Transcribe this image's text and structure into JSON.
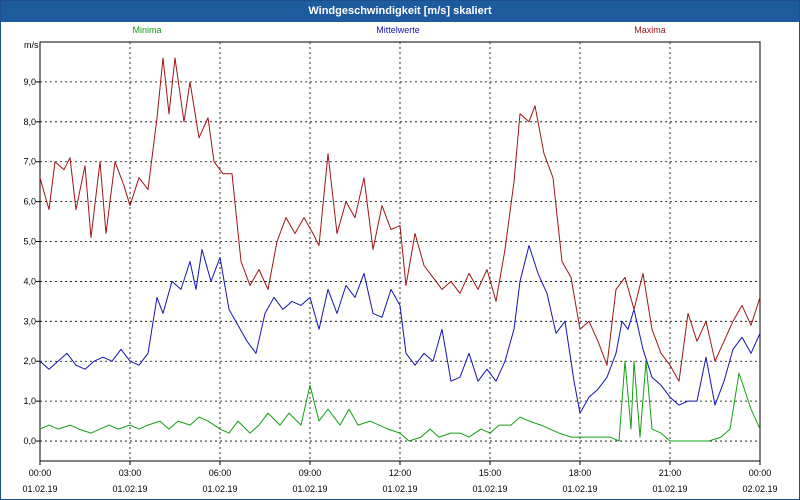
{
  "window": {
    "title": "Windgeschwindigkeit [m/s] skaliert"
  },
  "colors": {
    "minima": "#12a012",
    "mittelwerte": "#1414b4",
    "maxima": "#a01414",
    "grid": "#000000",
    "title_bg": "#1e5a9e"
  },
  "chart_data": {
    "type": "line",
    "title": "Windgeschwindigkeit [m/s] skaliert",
    "ylabel": "m/s",
    "xlabel": "",
    "ylim": [
      -0.5,
      10
    ],
    "y_ticks": [
      "0,0",
      "1,0",
      "2,0",
      "3,0",
      "4,0",
      "5,0",
      "6,0",
      "7,0",
      "8,0",
      "9,0"
    ],
    "y_tick_values": [
      0,
      1,
      2,
      3,
      4,
      5,
      6,
      7,
      8,
      9
    ],
    "x_range_hours": [
      0,
      24
    ],
    "x_ticks": [
      {
        "time": "00:00",
        "date": "01.02.19"
      },
      {
        "time": "03:00",
        "date": "01.02.19"
      },
      {
        "time": "06:00",
        "date": "01.02.19"
      },
      {
        "time": "09:00",
        "date": "01.02.19"
      },
      {
        "time": "12:00",
        "date": "01.02.19"
      },
      {
        "time": "15:00",
        "date": "01.02.19"
      },
      {
        "time": "18:00",
        "date": "01.02.19"
      },
      {
        "time": "21:00",
        "date": "01.02.19"
      },
      {
        "time": "00:00",
        "date": "02.02.19"
      }
    ],
    "grid": true,
    "legend_position": "top",
    "series": [
      {
        "name": "Minima",
        "color": "#12a012",
        "points": [
          [
            0,
            0.3
          ],
          [
            0.3,
            0.4
          ],
          [
            0.6,
            0.3
          ],
          [
            1.0,
            0.4
          ],
          [
            1.3,
            0.3
          ],
          [
            1.7,
            0.2
          ],
          [
            2.0,
            0.3
          ],
          [
            2.3,
            0.4
          ],
          [
            2.6,
            0.3
          ],
          [
            3.0,
            0.4
          ],
          [
            3.3,
            0.3
          ],
          [
            3.6,
            0.4
          ],
          [
            4.0,
            0.5
          ],
          [
            4.3,
            0.3
          ],
          [
            4.6,
            0.5
          ],
          [
            5.0,
            0.4
          ],
          [
            5.3,
            0.6
          ],
          [
            5.6,
            0.5
          ],
          [
            6.0,
            0.3
          ],
          [
            6.3,
            0.2
          ],
          [
            6.6,
            0.5
          ],
          [
            7.0,
            0.2
          ],
          [
            7.3,
            0.4
          ],
          [
            7.6,
            0.7
          ],
          [
            8.0,
            0.4
          ],
          [
            8.3,
            0.7
          ],
          [
            8.7,
            0.4
          ],
          [
            9.0,
            1.4
          ],
          [
            9.3,
            0.5
          ],
          [
            9.6,
            0.8
          ],
          [
            10.0,
            0.4
          ],
          [
            10.3,
            0.8
          ],
          [
            10.6,
            0.4
          ],
          [
            11.0,
            0.5
          ],
          [
            11.3,
            0.4
          ],
          [
            11.6,
            0.3
          ],
          [
            12.0,
            0.2
          ],
          [
            12.3,
            0.0
          ],
          [
            12.7,
            0.1
          ],
          [
            13.0,
            0.3
          ],
          [
            13.3,
            0.1
          ],
          [
            13.7,
            0.2
          ],
          [
            14.0,
            0.2
          ],
          [
            14.3,
            0.1
          ],
          [
            14.7,
            0.3
          ],
          [
            15.0,
            0.2
          ],
          [
            15.3,
            0.4
          ],
          [
            15.7,
            0.4
          ],
          [
            16.0,
            0.6
          ],
          [
            16.3,
            0.5
          ],
          [
            16.7,
            0.4
          ],
          [
            17.0,
            0.3
          ],
          [
            17.3,
            0.2
          ],
          [
            17.7,
            0.1
          ],
          [
            18.0,
            0.1
          ],
          [
            18.3,
            0.1
          ],
          [
            18.7,
            0.1
          ],
          [
            19.0,
            0.1
          ],
          [
            19.3,
            0.0
          ],
          [
            19.5,
            2.0
          ],
          [
            19.7,
            0.3
          ],
          [
            19.8,
            2.0
          ],
          [
            20.0,
            0.1
          ],
          [
            20.2,
            2.0
          ],
          [
            20.4,
            0.3
          ],
          [
            20.7,
            0.2
          ],
          [
            21.0,
            0.0
          ],
          [
            21.3,
            0.0
          ],
          [
            21.7,
            0.0
          ],
          [
            22.0,
            0.0
          ],
          [
            22.3,
            0.0
          ],
          [
            22.7,
            0.1
          ],
          [
            23.0,
            0.3
          ],
          [
            23.3,
            1.7
          ],
          [
            23.7,
            0.8
          ],
          [
            24.0,
            0.3
          ]
        ]
      },
      {
        "name": "Mittelwerte",
        "color": "#1414b4",
        "points": [
          [
            0,
            2.0
          ],
          [
            0.3,
            1.8
          ],
          [
            0.6,
            2.0
          ],
          [
            0.9,
            2.2
          ],
          [
            1.2,
            1.9
          ],
          [
            1.5,
            1.8
          ],
          [
            1.8,
            2.0
          ],
          [
            2.1,
            2.1
          ],
          [
            2.4,
            2.0
          ],
          [
            2.7,
            2.3
          ],
          [
            3.0,
            2.0
          ],
          [
            3.3,
            1.9
          ],
          [
            3.6,
            2.2
          ],
          [
            3.9,
            3.6
          ],
          [
            4.1,
            3.2
          ],
          [
            4.4,
            4.0
          ],
          [
            4.7,
            3.8
          ],
          [
            5.0,
            4.5
          ],
          [
            5.2,
            3.8
          ],
          [
            5.4,
            4.8
          ],
          [
            5.7,
            4.0
          ],
          [
            6.0,
            4.6
          ],
          [
            6.3,
            3.3
          ],
          [
            6.6,
            2.9
          ],
          [
            6.9,
            2.5
          ],
          [
            7.2,
            2.2
          ],
          [
            7.5,
            3.2
          ],
          [
            7.8,
            3.6
          ],
          [
            8.1,
            3.3
          ],
          [
            8.4,
            3.5
          ],
          [
            8.7,
            3.4
          ],
          [
            9.0,
            3.6
          ],
          [
            9.3,
            2.8
          ],
          [
            9.6,
            3.8
          ],
          [
            9.9,
            3.2
          ],
          [
            10.2,
            3.9
          ],
          [
            10.5,
            3.6
          ],
          [
            10.8,
            4.2
          ],
          [
            11.1,
            3.2
          ],
          [
            11.4,
            3.1
          ],
          [
            11.7,
            3.8
          ],
          [
            12.0,
            3.4
          ],
          [
            12.2,
            2.2
          ],
          [
            12.5,
            1.9
          ],
          [
            12.8,
            2.2
          ],
          [
            13.1,
            2.0
          ],
          [
            13.4,
            2.8
          ],
          [
            13.7,
            1.5
          ],
          [
            14.0,
            1.6
          ],
          [
            14.3,
            2.2
          ],
          [
            14.6,
            1.5
          ],
          [
            14.9,
            1.8
          ],
          [
            15.2,
            1.5
          ],
          [
            15.5,
            2.0
          ],
          [
            15.8,
            2.8
          ],
          [
            16.0,
            4.0
          ],
          [
            16.3,
            4.9
          ],
          [
            16.6,
            4.2
          ],
          [
            16.9,
            3.7
          ],
          [
            17.2,
            2.7
          ],
          [
            17.5,
            3.0
          ],
          [
            17.8,
            1.5
          ],
          [
            18.0,
            0.7
          ],
          [
            18.3,
            1.1
          ],
          [
            18.6,
            1.3
          ],
          [
            18.9,
            1.6
          ],
          [
            19.2,
            2.2
          ],
          [
            19.4,
            3.0
          ],
          [
            19.6,
            2.8
          ],
          [
            19.8,
            3.3
          ],
          [
            20.1,
            2.3
          ],
          [
            20.4,
            1.6
          ],
          [
            20.7,
            1.4
          ],
          [
            21.0,
            1.1
          ],
          [
            21.3,
            0.9
          ],
          [
            21.6,
            1.0
          ],
          [
            21.9,
            1.0
          ],
          [
            22.2,
            2.1
          ],
          [
            22.5,
            0.9
          ],
          [
            22.8,
            1.5
          ],
          [
            23.1,
            2.3
          ],
          [
            23.4,
            2.6
          ],
          [
            23.7,
            2.2
          ],
          [
            24.0,
            2.7
          ]
        ]
      },
      {
        "name": "Maxima",
        "color": "#a01414",
        "points": [
          [
            0,
            6.6
          ],
          [
            0.3,
            5.8
          ],
          [
            0.5,
            7.0
          ],
          [
            0.8,
            6.8
          ],
          [
            1.0,
            7.1
          ],
          [
            1.2,
            5.8
          ],
          [
            1.5,
            6.9
          ],
          [
            1.7,
            5.1
          ],
          [
            2.0,
            7.0
          ],
          [
            2.2,
            5.2
          ],
          [
            2.5,
            7.0
          ],
          [
            2.8,
            6.4
          ],
          [
            3.0,
            5.9
          ],
          [
            3.3,
            6.6
          ],
          [
            3.6,
            6.3
          ],
          [
            3.9,
            8.1
          ],
          [
            4.1,
            9.6
          ],
          [
            4.3,
            8.2
          ],
          [
            4.5,
            9.6
          ],
          [
            4.8,
            8.0
          ],
          [
            5.0,
            9.0
          ],
          [
            5.3,
            7.6
          ],
          [
            5.6,
            8.1
          ],
          [
            5.8,
            7.0
          ],
          [
            6.1,
            6.7
          ],
          [
            6.4,
            6.7
          ],
          [
            6.7,
            4.5
          ],
          [
            7.0,
            3.9
          ],
          [
            7.3,
            4.3
          ],
          [
            7.6,
            3.8
          ],
          [
            7.9,
            5.0
          ],
          [
            8.2,
            5.6
          ],
          [
            8.5,
            5.2
          ],
          [
            8.8,
            5.6
          ],
          [
            9.1,
            5.2
          ],
          [
            9.3,
            4.9
          ],
          [
            9.6,
            7.2
          ],
          [
            9.9,
            5.2
          ],
          [
            10.2,
            6.0
          ],
          [
            10.5,
            5.6
          ],
          [
            10.8,
            6.6
          ],
          [
            11.1,
            4.8
          ],
          [
            11.4,
            5.9
          ],
          [
            11.7,
            5.3
          ],
          [
            12.0,
            5.4
          ],
          [
            12.2,
            3.9
          ],
          [
            12.5,
            5.2
          ],
          [
            12.8,
            4.4
          ],
          [
            13.1,
            4.1
          ],
          [
            13.4,
            3.8
          ],
          [
            13.7,
            4.0
          ],
          [
            14.0,
            3.7
          ],
          [
            14.3,
            4.2
          ],
          [
            14.6,
            3.8
          ],
          [
            14.9,
            4.3
          ],
          [
            15.2,
            3.5
          ],
          [
            15.5,
            4.8
          ],
          [
            15.8,
            6.5
          ],
          [
            16.0,
            8.2
          ],
          [
            16.3,
            8.0
          ],
          [
            16.5,
            8.4
          ],
          [
            16.8,
            7.2
          ],
          [
            17.1,
            6.6
          ],
          [
            17.4,
            4.5
          ],
          [
            17.7,
            4.1
          ],
          [
            18.0,
            2.8
          ],
          [
            18.3,
            3.0
          ],
          [
            18.6,
            2.5
          ],
          [
            18.9,
            1.9
          ],
          [
            19.2,
            3.8
          ],
          [
            19.5,
            4.1
          ],
          [
            19.8,
            3.3
          ],
          [
            20.1,
            4.2
          ],
          [
            20.4,
            2.8
          ],
          [
            20.7,
            2.2
          ],
          [
            21.0,
            1.9
          ],
          [
            21.3,
            1.5
          ],
          [
            21.6,
            3.2
          ],
          [
            21.9,
            2.5
          ],
          [
            22.2,
            3.0
          ],
          [
            22.5,
            2.0
          ],
          [
            22.8,
            2.5
          ],
          [
            23.1,
            3.0
          ],
          [
            23.4,
            3.4
          ],
          [
            23.7,
            2.9
          ],
          [
            24.0,
            3.6
          ]
        ]
      }
    ]
  }
}
